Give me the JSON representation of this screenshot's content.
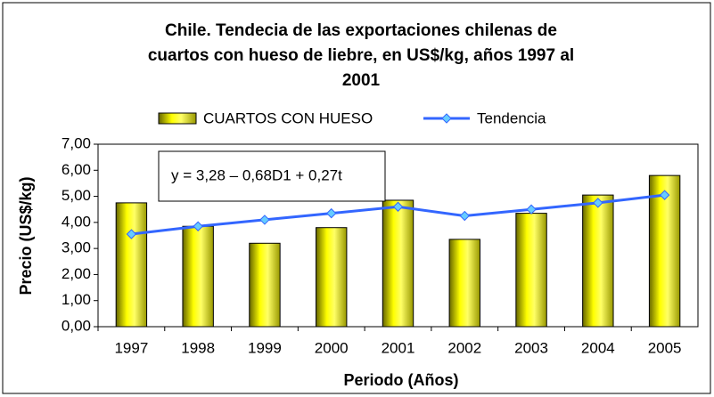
{
  "chart_data": {
    "type": "bar",
    "title": [
      "Chile. Tendecia de las exportaciones chilenas de",
      "cuartos con hueso de liebre, en US$/kg, años 1997 al",
      "2001"
    ],
    "x_label": "Periodo (Años)",
    "y_label": "Precio (US$/kg)",
    "annotation": "y = 3,28 – 0,68D1 + 0,27t",
    "categories": [
      "1997",
      "1998",
      "1999",
      "2000",
      "2001",
      "2002",
      "2003",
      "2004",
      "2005"
    ],
    "series": [
      {
        "name": "CUARTOS CON HUESO",
        "type": "bar",
        "color": "#ffff00",
        "values": [
          4.75,
          3.85,
          3.2,
          3.8,
          4.85,
          3.35,
          4.35,
          5.05,
          5.8
        ]
      },
      {
        "name": "Tendencia",
        "type": "line",
        "color": "#3366ff",
        "values": [
          3.55,
          3.85,
          4.1,
          4.35,
          4.6,
          4.25,
          4.5,
          4.75,
          5.05
        ]
      }
    ],
    "ylim": [
      0,
      7
    ],
    "yticks": [
      {
        "value": 0,
        "label": "0,00"
      },
      {
        "value": 1,
        "label": "1,00"
      },
      {
        "value": 2,
        "label": "2,00"
      },
      {
        "value": 3,
        "label": "3,00"
      },
      {
        "value": 4,
        "label": "4,00"
      },
      {
        "value": 5,
        "label": "5,00"
      },
      {
        "value": 6,
        "label": "6,00"
      },
      {
        "value": 7,
        "label": "7,00"
      }
    ],
    "legend": "top"
  }
}
